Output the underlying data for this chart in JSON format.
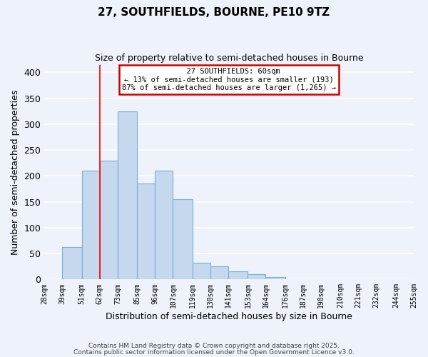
{
  "title": "27, SOUTHFIELDS, BOURNE, PE10 9TZ",
  "subtitle": "Size of property relative to semi-detached houses in Bourne",
  "xlabel": "Distribution of semi-detached houses by size in Bourne",
  "ylabel": "Number of semi-detached properties",
  "bar_color": "#c5d8ee",
  "bar_edge_color": "#7baed4",
  "bins": [
    28,
    39,
    51,
    62,
    73,
    85,
    96,
    107,
    119,
    130,
    141,
    153,
    164,
    176,
    187,
    198,
    210,
    221,
    232,
    244,
    255
  ],
  "heights": [
    0,
    62,
    210,
    230,
    325,
    185,
    210,
    155,
    32,
    25,
    15,
    10,
    4,
    1,
    0,
    0,
    0,
    0,
    0,
    0
  ],
  "red_line_x": 62,
  "ylim": [
    0,
    415
  ],
  "yticks": [
    0,
    50,
    100,
    150,
    200,
    250,
    300,
    350,
    400
  ],
  "annotation_title": "27 SOUTHFIELDS: 60sqm",
  "annotation_line1": "← 13% of semi-detached houses are smaller (193)",
  "annotation_line2": "87% of semi-detached houses are larger (1,265) →",
  "annotation_box_color": "#ffffff",
  "annotation_box_edge": "#cc0000",
  "footer1": "Contains HM Land Registry data © Crown copyright and database right 2025.",
  "footer2": "Contains public sector information licensed under the Open Government Licence v3.0.",
  "background_color": "#eef2fa",
  "grid_color": "#ffffff",
  "tick_labels": [
    "28sqm",
    "39sqm",
    "51sqm",
    "62sqm",
    "73sqm",
    "85sqm",
    "96sqm",
    "107sqm",
    "119sqm",
    "130sqm",
    "141sqm",
    "153sqm",
    "164sqm",
    "176sqm",
    "187sqm",
    "198sqm",
    "210sqm",
    "221sqm",
    "232sqm",
    "244sqm",
    "255sqm"
  ]
}
